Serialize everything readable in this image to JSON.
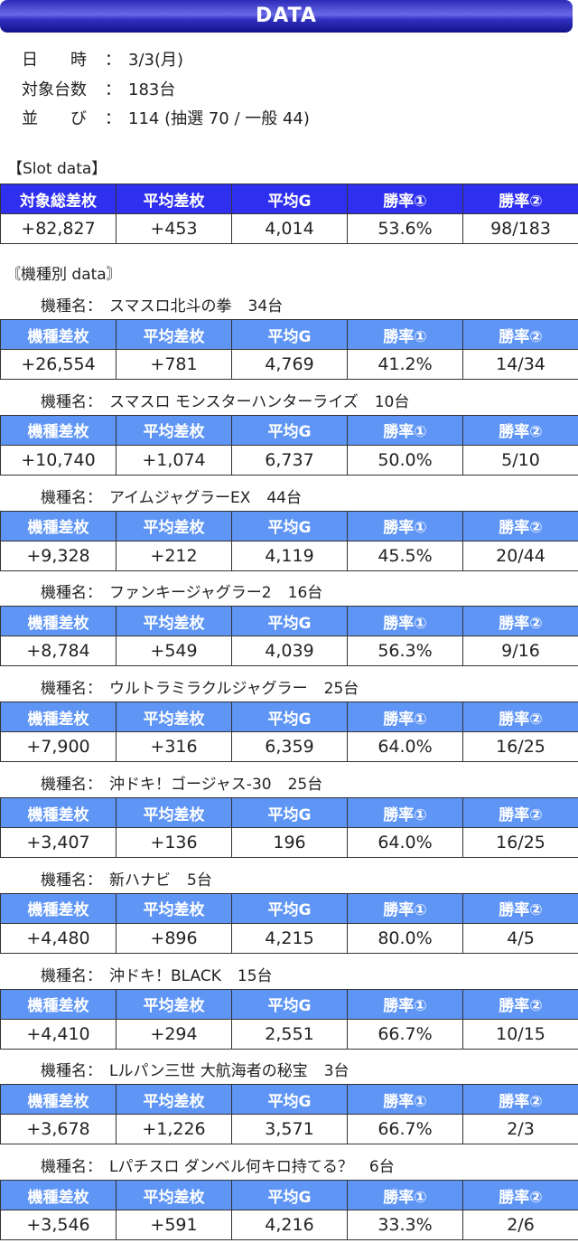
{
  "title": "DATA",
  "info": [
    {
      "label_a": "日",
      "label_b": "時",
      "colon": "：",
      "value": "3/3(月)"
    },
    {
      "label_a": "対象台数",
      "label_b": "",
      "colon": "：",
      "value": "183台"
    },
    {
      "label_a": "並",
      "label_b": "び",
      "colon": "：",
      "value": "114 (抽選 70 / 一般 44)"
    }
  ],
  "slot_section_label": "【Slot data】",
  "slot_headers": [
    "対象総差枚",
    "平均差枚",
    "平均G",
    "勝率①",
    "勝率②"
  ],
  "slot_values": [
    "+82,827",
    "+453",
    "4,014",
    "53.6%",
    "98/183"
  ],
  "model_section_label": "〘機種別 data〙",
  "model_prefix": "機種名：",
  "model_headers": [
    "機種差枚",
    "平均差枚",
    "平均G",
    "勝率①",
    "勝率②"
  ],
  "models": [
    {
      "name": "スマスロ北斗の拳",
      "count": "34台",
      "values": [
        "+26,554",
        "+781",
        "4,769",
        "41.2%",
        "14/34"
      ]
    },
    {
      "name": "スマスロ モンスターハンターライズ",
      "count": "10台",
      "values": [
        "+10,740",
        "+1,074",
        "6,737",
        "50.0%",
        "5/10"
      ]
    },
    {
      "name": "アイムジャグラーEX",
      "count": "44台",
      "values": [
        "+9,328",
        "+212",
        "4,119",
        "45.5%",
        "20/44"
      ]
    },
    {
      "name": "ファンキージャグラー2",
      "count": "16台",
      "values": [
        "+8,784",
        "+549",
        "4,039",
        "56.3%",
        "9/16"
      ]
    },
    {
      "name": "ウルトラミラクルジャグラー",
      "count": "25台",
      "values": [
        "+7,900",
        "+316",
        "6,359",
        "64.0%",
        "16/25"
      ]
    },
    {
      "name": "沖ドキ！ゴージャス-30",
      "count": "25台",
      "values": [
        "+3,407",
        "+136",
        "196",
        "64.0%",
        "16/25"
      ]
    },
    {
      "name": "新ハナビ",
      "count": "5台",
      "values": [
        "+4,480",
        "+896",
        "4,215",
        "80.0%",
        "4/5"
      ]
    },
    {
      "name": "沖ドキ！BLACK",
      "count": "15台",
      "values": [
        "+4,410",
        "+294",
        "2,551",
        "66.7%",
        "10/15"
      ]
    },
    {
      "name": "Lルパン三世 大航海者の秘宝",
      "count": "3台",
      "values": [
        "+3,678",
        "+1,226",
        "3,571",
        "66.7%",
        "2/3"
      ]
    },
    {
      "name": "Lパチスロ ダンベル何キロ持てる？",
      "count": "6台",
      "values": [
        "+3,546",
        "+591",
        "4,216",
        "33.3%",
        "2/6"
      ]
    }
  ]
}
